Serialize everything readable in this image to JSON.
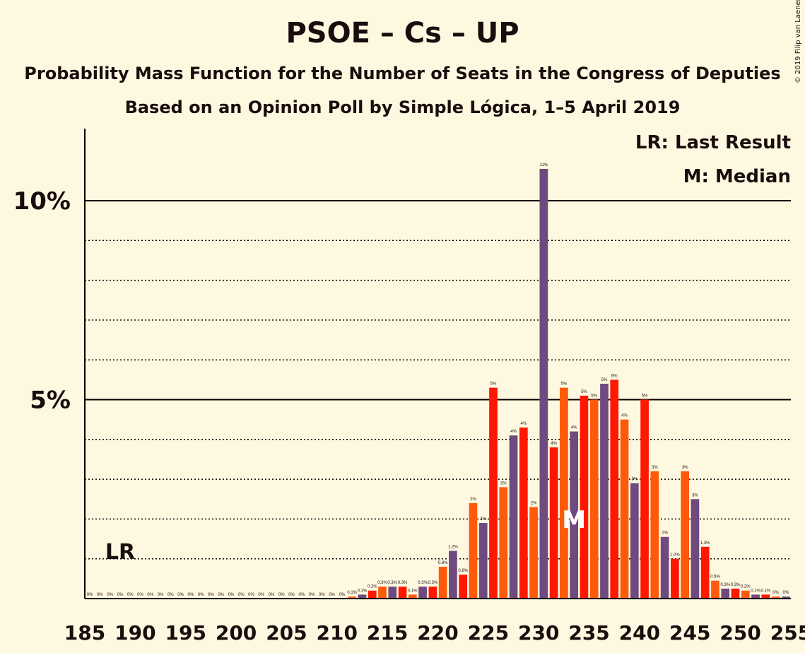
{
  "title": "PSOE – Cs – UP",
  "subtitle": "Probability Mass Function for the Number of Seats in the Congress of Deputies",
  "subtitle2": "Based on an Opinion Poll by Simple Lógica, 1–5 April 2019",
  "copyright": "© 2019 Filip van Laenen",
  "colors": {
    "background": "#fff8e1",
    "purple": "#6e4a7e",
    "red": "#ff1800",
    "orange": "#ff5a0a",
    "text": "#1a0d0d"
  },
  "chart_data": {
    "type": "bar",
    "x": [
      185,
      186,
      187,
      188,
      189,
      190,
      191,
      192,
      193,
      194,
      195,
      196,
      197,
      198,
      199,
      200,
      201,
      202,
      203,
      204,
      205,
      206,
      207,
      208,
      209,
      210,
      211,
      212,
      213,
      214,
      215,
      216,
      217,
      218,
      219,
      220,
      221,
      222,
      223,
      224,
      225,
      226,
      227,
      228,
      229,
      230,
      231,
      232,
      233,
      234,
      235,
      236,
      237,
      238,
      239,
      240,
      241,
      242,
      243,
      244,
      245,
      246,
      247,
      248,
      249,
      250,
      251,
      252,
      253,
      254
    ],
    "values": [
      0,
      0,
      0,
      0,
      0,
      0,
      0,
      0,
      0,
      0,
      0,
      0,
      0,
      0,
      0,
      0,
      0,
      0,
      0,
      0,
      0,
      0,
      0,
      0,
      0,
      0,
      0.05,
      0.1,
      0.2,
      0.3,
      0.3,
      0.3,
      0.1,
      0.3,
      0.3,
      0.8,
      1.2,
      0.6,
      2.4,
      1.9,
      5.3,
      2.8,
      4.1,
      4.3,
      2.3,
      10.8,
      3.8,
      5.3,
      4.2,
      5.1,
      5.0,
      5.4,
      5.5,
      4.5,
      2.9,
      5.0,
      3.2,
      1.55,
      1.0,
      3.2,
      2.5,
      1.3,
      0.45,
      0.25,
      0.25,
      0.2,
      0.1,
      0.1,
      0.05,
      0.05
    ],
    "data_labels": [
      "0%",
      "0%",
      "0%",
      "0%",
      "0%",
      "0%",
      "0%",
      "0%",
      "0%",
      "0%",
      "0%",
      "0%",
      "0%",
      "0%",
      "0%",
      "0%",
      "0%",
      "0%",
      "0%",
      "0%",
      "0%",
      "0%",
      "0%",
      "0%",
      "0%",
      "0%",
      "0.1%",
      "0.1%",
      "0.2%",
      "0.3%",
      "0.3%",
      "0.3%",
      "0.1%",
      "0.3%",
      "0.3%",
      "0.8%",
      "1.2%",
      "0.6%",
      "2%",
      "2%",
      "5%",
      "3%",
      "4%",
      "4%",
      "2%",
      "11%",
      "4%",
      "5%",
      "4%",
      "5%",
      "5%",
      "5%",
      "6%",
      "4%",
      "3%",
      "5%",
      "3%",
      "2%",
      "1.0%",
      "3%",
      "3%",
      "1.3%",
      "0.5%",
      "0.3%",
      "0.3%",
      "0.2%",
      "0.1%",
      "0.1%",
      "0%",
      "0%"
    ],
    "bar_colors": [
      "#6e4a7e",
      "#ff1800",
      "#ff5a0a"
    ],
    "x_ticks": [
      185,
      190,
      195,
      200,
      205,
      210,
      215,
      220,
      225,
      230,
      235,
      240,
      245,
      250,
      255
    ],
    "y_ticks": [
      {
        "value": 5,
        "label": "5%"
      },
      {
        "value": 10,
        "label": "10%"
      }
    ],
    "ylim": [
      0,
      11.8
    ],
    "xlim": [
      185,
      255
    ],
    "last_result": {
      "x": 188,
      "label": "LR"
    },
    "median": {
      "x": 233,
      "label": "M"
    },
    "legend": [
      {
        "label": "LR: Last Result"
      },
      {
        "label": "M: Median"
      }
    ]
  }
}
